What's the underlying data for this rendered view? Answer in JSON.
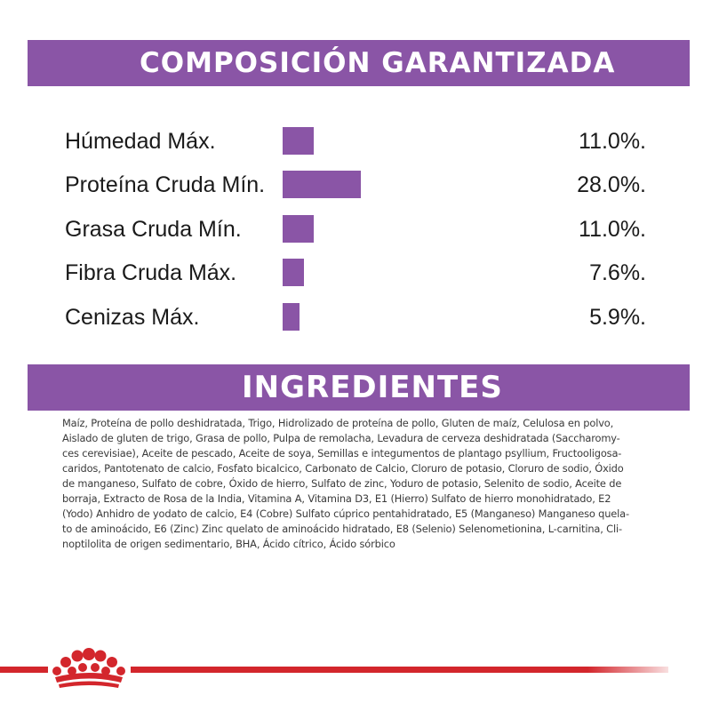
{
  "composition": {
    "title": "COMPOSICIÓN GARANTIZADA",
    "accent_color": "#8a55a6",
    "rows": [
      {
        "label": "Húmedad Máx.",
        "value": "11.0%.",
        "percent": 11.0
      },
      {
        "label": "Proteína Cruda Mín.",
        "value": "28.0%.",
        "percent": 28.0
      },
      {
        "label": "Grasa Cruda Mín.",
        "value": "11.0%.",
        "percent": 11.0
      },
      {
        "label": "Fibra Cruda Máx.",
        "value": "7.6%.",
        "percent": 7.6
      },
      {
        "label": "Cenizas Máx.",
        "value": "5.9%.",
        "percent": 5.9
      }
    ]
  },
  "ingredients": {
    "title": "INGREDIENTES",
    "lines": [
      "Maíz, Proteína de pollo deshidratada, Trigo, Hidrolizado de proteína de pollo, Gluten de maíz, Celulosa en polvo,",
      "Aislado de gluten de trigo, Grasa de pollo, Pulpa de remolacha, Levadura de cerveza deshidratada (Saccharomy-",
      "ces cerevisiae), Aceite de pescado, Aceite de soya, Semillas e integumentos de plantago psyllium, Fructooligosa-",
      "caridos, Pantotenato de calcio, Fosfato bicalcico, Carbonato de Calcio, Cloruro de potasio, Cloruro de sodio, Óxido",
      "de manganeso, Sulfato de cobre, Óxido de hierro, Sulfato de zinc, Yoduro de potasio, Selenito de sodio, Aceite de",
      "borraja, Extracto de Rosa de la India, Vitamina A, Vitamina D3, E1 (Hierro) Sulfato de hierro monohidratado, E2",
      "(Yodo) Anhidro de yodato de calcio, E4 (Cobre) Sulfato cúprico pentahidratado, E5 (Manganeso) Manganeso quela-",
      "to de aminoácido, E6 (Zinc) Zinc quelato de aminoácido hidratado, E8 (Selenio) Selenometionina, L-carnitina, Cli-",
      "noptilolita de origen sedimentario, BHA, Ácido cítrico, Ácido sórbico"
    ]
  },
  "footer": {
    "logo_icon": "royal-canin-crown-icon",
    "line_color": "#d3262c"
  }
}
